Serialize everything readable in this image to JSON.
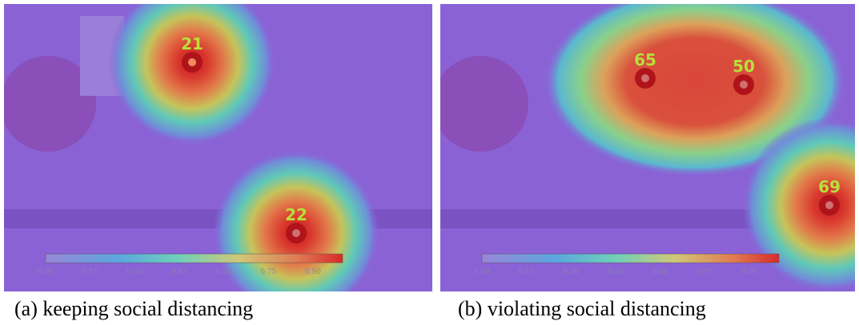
{
  "panels": [
    {
      "person_ids": [
        "21",
        "22"
      ],
      "colorbar_ticks": [
        "0.00",
        "0.15",
        "0.30",
        "0.45",
        "0.60",
        "0.75",
        "0.90"
      ],
      "caption": "(a) keeping social distancing"
    },
    {
      "person_ids": [
        "65",
        "50",
        "69"
      ],
      "colorbar_ticks": [
        "0.00",
        "0.15",
        "0.30",
        "0.45",
        "0.60",
        "0.75",
        "0.90"
      ],
      "caption": "(b) violating social distancing"
    }
  ]
}
